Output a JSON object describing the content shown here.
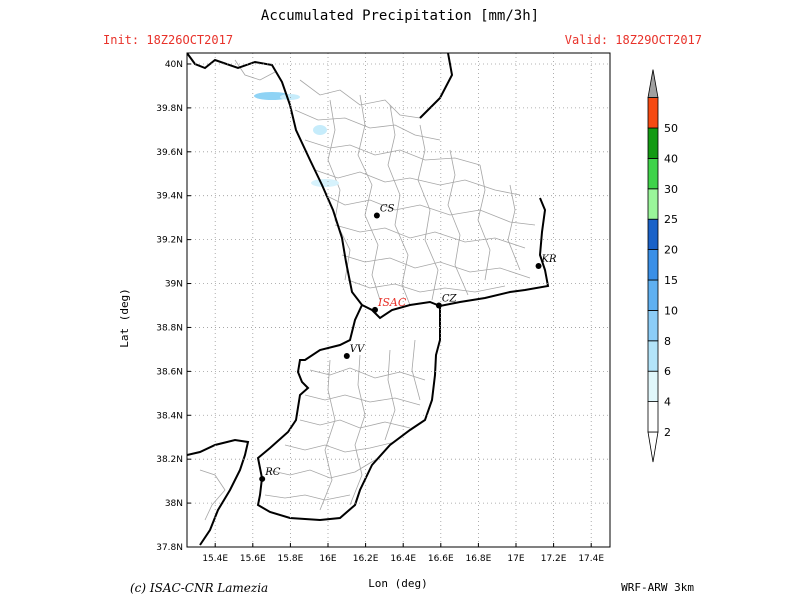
{
  "header": {
    "title": "Accumulated Precipitation [mm/3h]",
    "init": "Init: 18Z26OCT2017",
    "valid": "Valid: 18Z29OCT2017"
  },
  "footer": {
    "credit": "(c) ISAC-CNR Lamezia",
    "model": "WRF-ARW 3km"
  },
  "map": {
    "xlabel": "Lon (deg)",
    "ylabel": "Lat (deg)",
    "lon_range": [
      15.25,
      17.5
    ],
    "lat_range": [
      37.8,
      40.05
    ],
    "lon_ticks": [
      {
        "v": 15.4,
        "label": "15.4E"
      },
      {
        "v": 15.6,
        "label": "15.6E"
      },
      {
        "v": 15.8,
        "label": "15.8E"
      },
      {
        "v": 16.0,
        "label": "16E"
      },
      {
        "v": 16.2,
        "label": "16.2E"
      },
      {
        "v": 16.4,
        "label": "16.4E"
      },
      {
        "v": 16.6,
        "label": "16.6E"
      },
      {
        "v": 16.8,
        "label": "16.8E"
      },
      {
        "v": 17.0,
        "label": "17E"
      },
      {
        "v": 17.2,
        "label": "17.2E"
      },
      {
        "v": 17.4,
        "label": "17.4E"
      }
    ],
    "lat_ticks": [
      {
        "v": 37.8,
        "label": "37.8N"
      },
      {
        "v": 38.0,
        "label": "38N"
      },
      {
        "v": 38.2,
        "label": "38.2N"
      },
      {
        "v": 38.4,
        "label": "38.4N"
      },
      {
        "v": 38.6,
        "label": "38.6N"
      },
      {
        "v": 38.8,
        "label": "38.8N"
      },
      {
        "v": 39.0,
        "label": "39N"
      },
      {
        "v": 39.2,
        "label": "39.2N"
      },
      {
        "v": 39.4,
        "label": "39.4N"
      },
      {
        "v": 39.6,
        "label": "39.6N"
      },
      {
        "v": 39.8,
        "label": "39.8N"
      },
      {
        "v": 40.0,
        "label": "40N"
      }
    ],
    "cities": [
      {
        "name": "CS",
        "lon": 16.26,
        "lat": 39.31,
        "color": "#000000"
      },
      {
        "name": "KR",
        "lon": 17.12,
        "lat": 39.08,
        "color": "#000000"
      },
      {
        "name": "ISAC",
        "lon": 16.25,
        "lat": 38.88,
        "color": "#e8322a"
      },
      {
        "name": "CZ",
        "lon": 16.59,
        "lat": 38.9,
        "color": "#000000"
      },
      {
        "name": "VV",
        "lon": 16.1,
        "lat": 38.67,
        "color": "#000000"
      },
      {
        "name": "RC",
        "lon": 15.65,
        "lat": 38.11,
        "color": "#000000"
      }
    ]
  },
  "colorbar": {
    "levels": [
      {
        "label": "2",
        "color": "#ffffff"
      },
      {
        "label": "4",
        "color": "#e1f7fb"
      },
      {
        "label": "6",
        "color": "#b3e4f9"
      },
      {
        "label": "8",
        "color": "#8ccdf7"
      },
      {
        "label": "10",
        "color": "#5fb0f1"
      },
      {
        "label": "15",
        "color": "#3a8fe7"
      },
      {
        "label": "20",
        "color": "#1a62c9"
      },
      {
        "label": "25",
        "color": "#9af59a"
      },
      {
        "label": "30",
        "color": "#3fd34a"
      },
      {
        "label": "40",
        "color": "#139a13"
      },
      {
        "label": "50",
        "color": "#f54a12"
      }
    ],
    "top_color": "#a0a0a0"
  }
}
